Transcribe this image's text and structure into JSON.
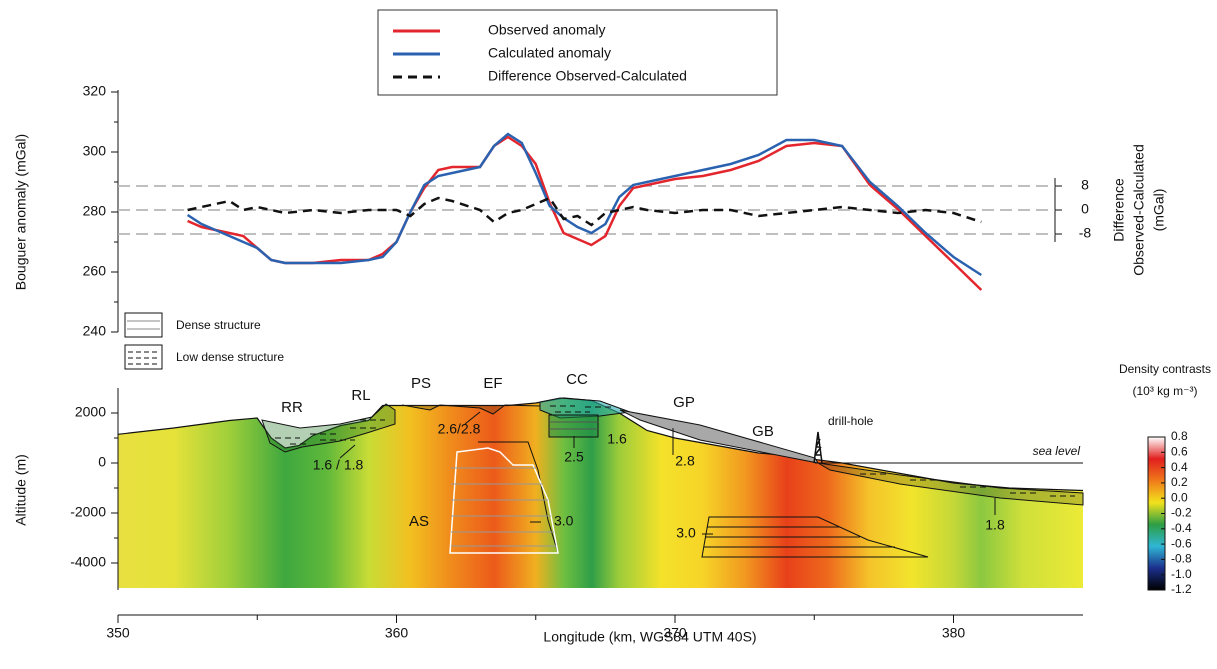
{
  "chart_data": [
    {
      "type": "line",
      "ylabel": "Bouguer anomaly (mGal)",
      "y2label": [
        "Difference",
        "Observed-Calculated",
        "(mGal)"
      ],
      "x": [
        352.5,
        353,
        354,
        354.5,
        355,
        355.5,
        356,
        357,
        358,
        359,
        359.5,
        360,
        360.5,
        361,
        361.5,
        362,
        363,
        363.5,
        364,
        364.5,
        365,
        365.5,
        366,
        366.5,
        367,
        367.5,
        368,
        368.5,
        369,
        370,
        371,
        372,
        373,
        374,
        375,
        376,
        377,
        378,
        379,
        380,
        381
      ],
      "series": [
        {
          "name": "Observed anomaly",
          "color": "#e3262d",
          "style": "solid",
          "values": [
            277,
            275,
            273,
            272,
            268,
            264,
            263,
            263,
            264,
            264,
            266,
            270,
            280,
            288,
            294,
            295,
            295,
            302,
            305,
            302,
            296,
            283,
            273,
            271,
            269,
            272,
            282,
            288,
            289,
            291,
            292,
            294,
            297,
            302,
            303,
            302,
            289,
            281,
            272,
            263,
            254
          ]
        },
        {
          "name": "Calculated anomaly",
          "color": "#2b62b0",
          "style": "solid",
          "values": [
            279,
            276,
            272,
            270,
            268,
            264,
            263,
            263,
            263,
            264,
            265,
            270,
            280,
            289,
            292,
            293,
            295,
            302,
            306,
            303,
            293,
            282,
            278,
            275,
            273,
            276,
            285,
            289,
            290,
            292,
            294,
            296,
            299,
            304,
            304,
            302,
            290,
            282,
            273,
            265,
            259
          ]
        },
        {
          "name": "Difference Observed-Calculated",
          "color": "#111111",
          "style": "dashed",
          "axis": "y2",
          "values": [
            0,
            1,
            3,
            0,
            1,
            0,
            -1,
            0,
            -1,
            0,
            0,
            0,
            -2,
            2,
            4,
            3,
            0,
            -4,
            -1,
            0,
            2,
            4,
            -3,
            -2,
            -5,
            -1,
            0,
            1,
            0,
            -1,
            0,
            0,
            -2,
            -1,
            0,
            1,
            0,
            -1,
            0,
            -1,
            -4
          ]
        }
      ],
      "xlim": [
        350,
        384.65
      ],
      "ylim": [
        240,
        320
      ],
      "yticks": [
        240,
        260,
        280,
        300,
        320
      ],
      "y2lim": [
        -40.67,
        39.33
      ],
      "y2ticks": [
        -8,
        0,
        8
      ],
      "y2grid": true,
      "legend": "top"
    },
    {
      "type": "section",
      "xlabel": "Longitude (km, WGS84 UTM 40S)",
      "ylabel": "Altitude (m)",
      "xlim": [
        350,
        384.65
      ],
      "xticks": [
        350,
        360,
        370,
        380
      ],
      "ylim": [
        -6000,
        3000
      ],
      "yticks": [
        -4000,
        -2000,
        0,
        2000
      ],
      "topography": {
        "x": [
          350,
          352,
          354,
          355,
          355.5,
          356,
          356.5,
          357,
          358,
          359,
          359.5,
          360,
          361,
          362,
          363,
          364,
          365,
          366,
          367,
          368,
          369,
          370,
          371,
          372,
          373,
          374,
          375,
          376,
          378,
          380,
          382,
          384.65
        ],
        "values": [
          1150,
          1400,
          1700,
          1800,
          1000,
          600,
          700,
          1100,
          1500,
          1700,
          2300,
          2300,
          2300,
          2300,
          2300,
          2300,
          2400,
          2600,
          2500,
          2000,
          1300,
          1000,
          800,
          600,
          400,
          300,
          150,
          0,
          -400,
          -800,
          -1000,
          -1100
        ]
      },
      "colorbar": {
        "title": "Density contrasts",
        "unit": "(10³ kg m⁻³)",
        "lim": [
          -1.2,
          0.8
        ],
        "ticks": [
          0.8,
          0.6,
          0.4,
          0.2,
          {
            "value": 0,
            "label": "0.0"
          },
          -0.2,
          -0.4,
          -0.6,
          -0.8,
          {
            "value": -1,
            "label": "-1.0"
          },
          -1.2
        ],
        "colors": [
          "#000000",
          "#1c2f8c",
          "#2fb6d4",
          "#2e9e44",
          "#f2e21c",
          "#f07a1a",
          "#e11f1f",
          "#ffffff"
        ]
      },
      "structure_legend": [
        "Dense structure",
        "Low dense structure"
      ],
      "annotations": [
        "RR",
        "RL",
        "PS",
        "EF",
        "CC",
        "GP",
        "GB",
        "AS",
        "drill-hole",
        "sea level",
        "1.6 / 1.8",
        "2.6/2.8",
        "2.5",
        "1.6",
        "2.8",
        "3.0",
        "3.0",
        "1.8"
      ]
    }
  ]
}
